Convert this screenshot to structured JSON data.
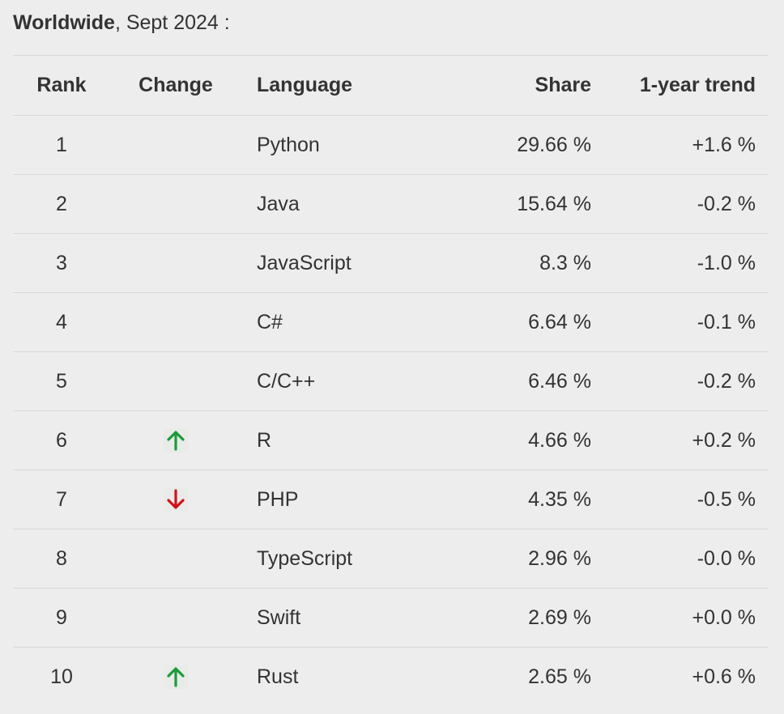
{
  "heading": {
    "region": "Worldwide",
    "date": ", Sept 2024 :"
  },
  "table": {
    "columns": {
      "rank": "Rank",
      "change": "Change",
      "language": "Language",
      "share": "Share",
      "trend": "1-year trend"
    },
    "rows": [
      {
        "rank": "1",
        "change": "none",
        "language": "Python",
        "share": "29.66 %",
        "trend": "+1.6 %"
      },
      {
        "rank": "2",
        "change": "none",
        "language": "Java",
        "share": "15.64 %",
        "trend": "-0.2 %"
      },
      {
        "rank": "3",
        "change": "none",
        "language": "JavaScript",
        "share": "8.3 %",
        "trend": "-1.0 %"
      },
      {
        "rank": "4",
        "change": "none",
        "language": "C#",
        "share": "6.64 %",
        "trend": "-0.1 %"
      },
      {
        "rank": "5",
        "change": "none",
        "language": "C/C++",
        "share": "6.46 %",
        "trend": "-0.2 %"
      },
      {
        "rank": "6",
        "change": "up",
        "language": "R",
        "share": "4.66 %",
        "trend": "+0.2 %"
      },
      {
        "rank": "7",
        "change": "down",
        "language": "PHP",
        "share": "4.35 %",
        "trend": "-0.5 %"
      },
      {
        "rank": "8",
        "change": "none",
        "language": "TypeScript",
        "share": "2.96 %",
        "trend": "-0.0 %"
      },
      {
        "rank": "9",
        "change": "none",
        "language": "Swift",
        "share": "2.69 %",
        "trend": "+0.0 %"
      },
      {
        "rank": "10",
        "change": "up",
        "language": "Rust",
        "share": "2.65 %",
        "trend": "+0.6 %"
      }
    ]
  },
  "icons": {
    "up": "arrow-up-icon",
    "down": "arrow-down-icon"
  },
  "colors": {
    "up": "#1a9b3a",
    "down": "#d0121b",
    "text": "#333333",
    "background": "#ededed",
    "divider": "#d8d8d8"
  }
}
